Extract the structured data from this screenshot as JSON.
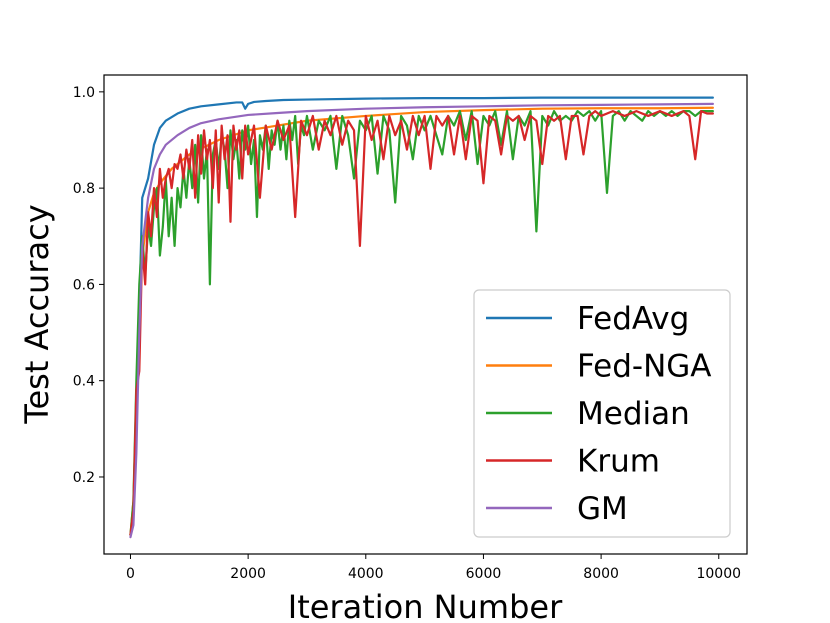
{
  "chart_data": {
    "type": "line",
    "xlabel": "Iteration Number",
    "ylabel": "Test Accuracy",
    "xlim": [
      -450,
      10480
    ],
    "ylim": [
      0.04,
      1.035
    ],
    "xticks": [
      0,
      2000,
      4000,
      6000,
      8000,
      10000
    ],
    "xtick_labels": [
      "0",
      "2000",
      "4000",
      "6000",
      "8000",
      "10000"
    ],
    "yticks": [
      0.2,
      0.4,
      0.6,
      0.8,
      1.0
    ],
    "ytick_labels": [
      "0.2",
      "0.4",
      "0.6",
      "0.8",
      "1.0"
    ],
    "grid": false,
    "legend_position": "lower-right",
    "series": [
      {
        "name": "FedAvg",
        "color": "#1f77b4",
        "x": [
          0,
          50,
          100,
          150,
          200,
          300,
          400,
          500,
          600,
          800,
          1000,
          1200,
          1500,
          1800,
          1900,
          1950,
          2000,
          2100,
          2300,
          2600,
          3000,
          4000,
          5000,
          6000,
          7000,
          8000,
          9000,
          9900
        ],
        "y": [
          0.08,
          0.12,
          0.3,
          0.55,
          0.78,
          0.82,
          0.89,
          0.925,
          0.94,
          0.955,
          0.965,
          0.97,
          0.974,
          0.978,
          0.978,
          0.965,
          0.975,
          0.979,
          0.981,
          0.983,
          0.984,
          0.986,
          0.987,
          0.987,
          0.988,
          0.988,
          0.988,
          0.988
        ]
      },
      {
        "name": "Fed-NGA",
        "color": "#ff7f0e",
        "x": [
          0,
          50,
          100,
          150,
          200,
          300,
          400,
          500,
          700,
          1000,
          1500,
          2000,
          2500,
          3000,
          4000,
          5000,
          6000,
          7000,
          8000,
          9000,
          9900
        ],
        "y": [
          0.08,
          0.15,
          0.35,
          0.55,
          0.66,
          0.75,
          0.79,
          0.81,
          0.84,
          0.87,
          0.9,
          0.92,
          0.93,
          0.94,
          0.95,
          0.958,
          0.962,
          0.965,
          0.966,
          0.966,
          0.967
        ]
      },
      {
        "name": "Median",
        "color": "#2ca02c",
        "x": [
          0,
          50,
          100,
          150,
          200,
          250,
          300,
          350,
          400,
          450,
          500,
          550,
          600,
          650,
          700,
          750,
          800,
          850,
          900,
          950,
          1000,
          1050,
          1100,
          1150,
          1200,
          1250,
          1300,
          1350,
          1400,
          1450,
          1500,
          1550,
          1600,
          1650,
          1700,
          1750,
          1800,
          1850,
          1900,
          1950,
          2000,
          2050,
          2100,
          2150,
          2200,
          2250,
          2300,
          2350,
          2400,
          2450,
          2500,
          2550,
          2600,
          2650,
          2700,
          2750,
          2800,
          2850,
          2900,
          2950,
          3000,
          3100,
          3200,
          3300,
          3400,
          3500,
          3600,
          3700,
          3800,
          3900,
          4000,
          4100,
          4200,
          4300,
          4400,
          4500,
          4600,
          4700,
          4800,
          4900,
          5000,
          5100,
          5200,
          5300,
          5400,
          5500,
          5600,
          5700,
          5800,
          5900,
          6000,
          6100,
          6200,
          6300,
          6400,
          6500,
          6600,
          6700,
          6800,
          6900,
          7000,
          7100,
          7200,
          7300,
          7400,
          7500,
          7600,
          7700,
          7800,
          7900,
          8000,
          8100,
          8200,
          8300,
          8400,
          8500,
          8600,
          8700,
          8800,
          8900,
          9000,
          9100,
          9200,
          9300,
          9400,
          9500,
          9600,
          9700,
          9800,
          9900
        ],
        "y": [
          0.08,
          0.15,
          0.4,
          0.6,
          0.7,
          0.62,
          0.72,
          0.68,
          0.76,
          0.8,
          0.66,
          0.72,
          0.82,
          0.7,
          0.78,
          0.68,
          0.8,
          0.76,
          0.84,
          0.78,
          0.86,
          0.8,
          0.89,
          0.77,
          0.91,
          0.82,
          0.88,
          0.6,
          0.87,
          0.9,
          0.84,
          0.91,
          0.88,
          0.8,
          0.92,
          0.86,
          0.9,
          0.82,
          0.92,
          0.88,
          0.93,
          0.85,
          0.9,
          0.74,
          0.91,
          0.88,
          0.93,
          0.84,
          0.92,
          0.89,
          0.94,
          0.88,
          0.93,
          0.86,
          0.94,
          0.9,
          0.95,
          0.85,
          0.93,
          0.91,
          0.95,
          0.88,
          0.94,
          0.92,
          0.95,
          0.84,
          0.95,
          0.91,
          0.82,
          0.94,
          0.92,
          0.95,
          0.83,
          0.95,
          0.92,
          0.77,
          0.95,
          0.93,
          0.86,
          0.95,
          0.92,
          0.95,
          0.91,
          0.87,
          0.95,
          0.93,
          0.96,
          0.9,
          0.96,
          0.85,
          0.95,
          0.93,
          0.96,
          0.89,
          0.96,
          0.86,
          0.95,
          0.93,
          0.96,
          0.71,
          0.95,
          0.93,
          0.96,
          0.94,
          0.95,
          0.94,
          0.96,
          0.95,
          0.96,
          0.94,
          0.96,
          0.79,
          0.95,
          0.96,
          0.94,
          0.96,
          0.95,
          0.94,
          0.96,
          0.95,
          0.96,
          0.95,
          0.96,
          0.95,
          0.96,
          0.96,
          0.95,
          0.96,
          0.96,
          0.96
        ]
      },
      {
        "name": "Krum",
        "color": "#d62728",
        "x": [
          0,
          50,
          100,
          150,
          200,
          250,
          300,
          350,
          400,
          450,
          500,
          550,
          600,
          650,
          700,
          750,
          800,
          850,
          900,
          950,
          1000,
          1050,
          1100,
          1150,
          1200,
          1250,
          1300,
          1350,
          1400,
          1450,
          1500,
          1550,
          1600,
          1650,
          1700,
          1750,
          1800,
          1850,
          1900,
          1950,
          2000,
          2100,
          2200,
          2300,
          2400,
          2500,
          2600,
          2700,
          2800,
          2900,
          3000,
          3100,
          3200,
          3300,
          3400,
          3500,
          3600,
          3700,
          3800,
          3900,
          4000,
          4100,
          4200,
          4300,
          4400,
          4500,
          4600,
          4700,
          4800,
          4900,
          5000,
          5100,
          5200,
          5300,
          5400,
          5500,
          5600,
          5700,
          5800,
          5900,
          6000,
          6100,
          6200,
          6300,
          6400,
          6500,
          6600,
          6700,
          6800,
          6900,
          7000,
          7100,
          7200,
          7300,
          7400,
          7500,
          7600,
          7700,
          7800,
          7900,
          8000,
          8200,
          8400,
          8600,
          8800,
          9000,
          9200,
          9400,
          9500,
          9600,
          9700,
          9800,
          9900
        ],
        "y": [
          0.08,
          0.13,
          0.38,
          0.42,
          0.68,
          0.6,
          0.75,
          0.7,
          0.8,
          0.74,
          0.84,
          0.78,
          0.82,
          0.84,
          0.8,
          0.85,
          0.84,
          0.87,
          0.82,
          0.88,
          0.84,
          0.9,
          0.78,
          0.91,
          0.83,
          0.92,
          0.86,
          0.9,
          0.8,
          0.92,
          0.77,
          0.93,
          0.86,
          0.91,
          0.73,
          0.93,
          0.88,
          0.92,
          0.82,
          0.93,
          0.87,
          0.93,
          0.78,
          0.93,
          0.88,
          0.94,
          0.9,
          0.93,
          0.74,
          0.94,
          0.91,
          0.95,
          0.88,
          0.94,
          0.91,
          0.95,
          0.89,
          0.94,
          0.92,
          0.68,
          0.95,
          0.9,
          0.94,
          0.86,
          0.95,
          0.91,
          0.94,
          0.88,
          0.95,
          0.91,
          0.95,
          0.84,
          0.95,
          0.93,
          0.95,
          0.87,
          0.95,
          0.86,
          0.95,
          0.94,
          0.81,
          0.95,
          0.94,
          0.87,
          0.95,
          0.94,
          0.95,
          0.9,
          0.95,
          0.94,
          0.85,
          0.95,
          0.94,
          0.95,
          0.86,
          0.95,
          0.95,
          0.87,
          0.95,
          0.96,
          0.95,
          0.96,
          0.95,
          0.96,
          0.95,
          0.96,
          0.95,
          0.96,
          0.95,
          0.86,
          0.96,
          0.955,
          0.955
        ]
      },
      {
        "name": "GM",
        "color": "#9467bd",
        "x": [
          0,
          50,
          100,
          150,
          200,
          300,
          400,
          500,
          600,
          800,
          1000,
          1200,
          1500,
          2000,
          2500,
          3000,
          4000,
          5000,
          6000,
          7000,
          8000,
          9000,
          9900
        ],
        "y": [
          0.075,
          0.1,
          0.25,
          0.5,
          0.68,
          0.78,
          0.84,
          0.87,
          0.89,
          0.91,
          0.925,
          0.935,
          0.943,
          0.952,
          0.956,
          0.96,
          0.965,
          0.968,
          0.97,
          0.972,
          0.973,
          0.974,
          0.975
        ]
      }
    ]
  }
}
